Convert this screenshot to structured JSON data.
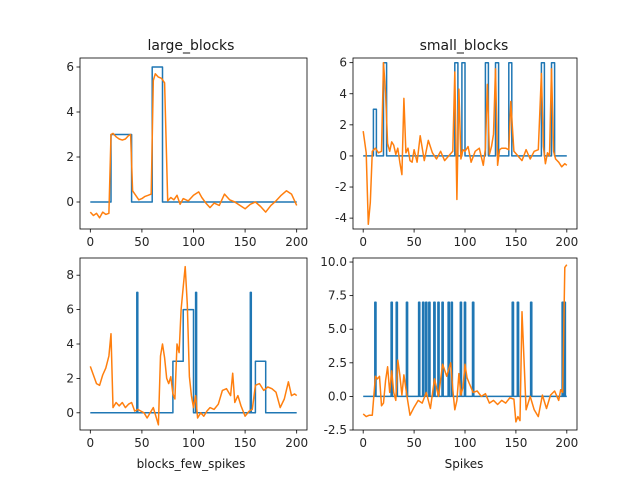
{
  "colors": {
    "blue": "#1f77b4",
    "orange": "#ff7f0e"
  },
  "chart_data": [
    {
      "type": "line",
      "title": "large_blocks",
      "xlabel": "",
      "xlim": [
        -10,
        210
      ],
      "ylim": [
        -1.2,
        6.4
      ],
      "xticks": [
        0,
        50,
        100,
        150,
        200
      ],
      "yticks": [
        0,
        2,
        4,
        6
      ],
      "series": [
        {
          "color": "#1f77b4",
          "step": true,
          "x": [
            0,
            20,
            40,
            60,
            70,
            200
          ],
          "y": [
            0,
            3,
            0,
            6,
            0,
            0
          ]
        },
        {
          "color": "#ff7f0e",
          "x": [
            0,
            3,
            6,
            9,
            12,
            15,
            18,
            20,
            22,
            25,
            28,
            31,
            34,
            37,
            39,
            41,
            44,
            47,
            50,
            53,
            56,
            59,
            61,
            63,
            66,
            69,
            72,
            75,
            78,
            81,
            84,
            87,
            90,
            95,
            100,
            105,
            108,
            112,
            116,
            120,
            125,
            130,
            135,
            140,
            145,
            150,
            155,
            160,
            165,
            170,
            175,
            180,
            185,
            190,
            195,
            200
          ],
          "y": [
            -0.45,
            -0.6,
            -0.5,
            -0.7,
            -0.45,
            -0.55,
            -0.5,
            3.0,
            3.05,
            2.9,
            2.8,
            2.75,
            2.8,
            2.95,
            3.0,
            0.5,
            0.3,
            0.1,
            0.15,
            0.25,
            0.3,
            0.35,
            5.4,
            5.7,
            5.55,
            5.5,
            5.3,
            0.05,
            0.2,
            0.1,
            0.3,
            -0.1,
            0.15,
            0.05,
            0.3,
            0.45,
            0.2,
            -0.05,
            -0.25,
            -0.05,
            -0.15,
            0.35,
            0.1,
            0.0,
            -0.15,
            -0.3,
            -0.1,
            0.0,
            -0.2,
            -0.45,
            -0.15,
            0.05,
            0.3,
            0.5,
            0.35,
            -0.15
          ]
        }
      ]
    },
    {
      "type": "line",
      "title": "small_blocks",
      "xlabel": "",
      "xlim": [
        -10,
        210
      ],
      "ylim": [
        -4.7,
        6.3
      ],
      "xticks": [
        0,
        50,
        100,
        150,
        200
      ],
      "yticks": [
        -4,
        -2,
        0,
        2,
        4,
        6
      ],
      "series": [
        {
          "color": "#1f77b4",
          "step": true,
          "x": [
            0,
            10,
            13,
            20,
            23,
            90,
            93,
            97,
            100,
            120,
            123,
            130,
            133,
            143,
            146,
            175,
            178,
            185,
            188,
            200
          ],
          "y": [
            0,
            3,
            0,
            6,
            0,
            6,
            0,
            6,
            0,
            6,
            0,
            6,
            0,
            6,
            0,
            6,
            0,
            6,
            0,
            0
          ]
        },
        {
          "color": "#ff7f0e",
          "x": [
            0,
            3,
            5,
            7,
            9,
            12,
            15,
            18,
            20,
            22,
            24,
            26,
            28,
            30,
            32,
            34,
            36,
            38,
            40,
            42,
            44,
            46,
            48,
            50,
            53,
            56,
            60,
            64,
            68,
            72,
            76,
            80,
            84,
            88,
            90,
            92,
            94,
            96,
            98,
            100,
            103,
            106,
            110,
            114,
            118,
            120,
            122,
            124,
            126,
            128,
            130,
            132,
            134,
            136,
            140,
            143,
            145,
            148,
            152,
            156,
            160,
            164,
            168,
            172,
            175,
            177,
            179,
            181,
            183,
            185,
            187,
            189,
            192,
            195,
            198,
            200
          ],
          "y": [
            1.6,
            0.2,
            -4.4,
            -3.0,
            0.3,
            0.5,
            0.2,
            0.3,
            6.0,
            4.0,
            0.8,
            0.3,
            0.9,
            0.7,
            0.1,
            0.5,
            -0.4,
            -1.2,
            3.7,
            0.2,
            0.5,
            -0.3,
            -0.4,
            0.4,
            -0.4,
            1.3,
            -0.3,
            1.0,
            0.2,
            -0.2,
            0.3,
            -0.3,
            0.0,
            0.3,
            5.4,
            -2.8,
            4.3,
            -0.2,
            0.4,
            0.3,
            0.6,
            -0.4,
            0.3,
            0.5,
            -0.6,
            0.5,
            4.6,
            0.1,
            0.6,
            1.4,
            5.6,
            -0.6,
            0.4,
            0.5,
            0.5,
            0.4,
            3.5,
            0.3,
            0.0,
            -0.3,
            0.4,
            -0.2,
            0.3,
            0.4,
            5.3,
            0.6,
            -0.5,
            0.2,
            0.0,
            5.6,
            0.3,
            -0.2,
            -0.4,
            -0.7,
            -0.5,
            -0.6
          ]
        }
      ]
    },
    {
      "type": "line",
      "title": "",
      "xlabel": "blocks_few_spikes",
      "xlim": [
        -10,
        210
      ],
      "ylim": [
        -1.0,
        9.0
      ],
      "xticks": [
        0,
        50,
        100,
        150,
        200
      ],
      "yticks": [
        0,
        2,
        4,
        6,
        8
      ],
      "series": [
        {
          "color": "#1f77b4",
          "step": true,
          "x": [
            0,
            45,
            46,
            80,
            90,
            100,
            102,
            103,
            104,
            155,
            156,
            160,
            170,
            200
          ],
          "y": [
            0,
            7,
            0,
            3,
            6,
            0,
            7,
            0,
            0,
            7,
            0,
            3,
            0,
            0
          ]
        },
        {
          "color": "#ff7f0e",
          "x": [
            0,
            3,
            6,
            9,
            12,
            15,
            18,
            20,
            22,
            25,
            28,
            31,
            34,
            37,
            40,
            43,
            46,
            49,
            52,
            55,
            58,
            61,
            64,
            66,
            68,
            70,
            72,
            74,
            76,
            78,
            80,
            82,
            84,
            86,
            88,
            90,
            92,
            94,
            96,
            98,
            100,
            102,
            104,
            107,
            110,
            113,
            116,
            120,
            124,
            128,
            132,
            136,
            138,
            140,
            143,
            146,
            150,
            154,
            157,
            160,
            164,
            168,
            172,
            176,
            180,
            184,
            188,
            192,
            195,
            198,
            200
          ],
          "y": [
            2.7,
            2.2,
            1.7,
            1.6,
            2.2,
            2.6,
            3.3,
            4.6,
            0.3,
            0.6,
            0.4,
            0.6,
            0.3,
            0.5,
            0.6,
            0.1,
            0.2,
            0.1,
            0.0,
            -0.3,
            0.0,
            0.3,
            -0.3,
            -0.7,
            3.3,
            4.0,
            3.2,
            2.0,
            1.7,
            2.1,
            1.1,
            0.8,
            4.0,
            3.5,
            6.0,
            7.3,
            8.5,
            6.3,
            2.1,
            1.0,
            0.3,
            1.0,
            -0.3,
            0.0,
            -0.2,
            0.1,
            0.3,
            0.2,
            0.5,
            1.3,
            1.4,
            1.0,
            2.3,
            0.6,
            1.0,
            0.4,
            -0.2,
            0.1,
            0.2,
            1.6,
            1.7,
            1.3,
            1.5,
            1.4,
            1.2,
            0.3,
            0.8,
            1.8,
            1.0,
            1.1,
            1.0
          ]
        }
      ]
    },
    {
      "type": "line",
      "title": "",
      "xlabel": "Spikes",
      "xlim": [
        -10,
        210
      ],
      "ylim": [
        -2.5,
        10.3
      ],
      "xticks": [
        0,
        50,
        100,
        150,
        200
      ],
      "yticks": [
        -2.5,
        0.0,
        2.5,
        5.0,
        7.5,
        10.0
      ],
      "series": [
        {
          "color": "#1f77b4",
          "spikes": true,
          "spike_height": 7,
          "x": [
            12,
            28,
            33,
            43,
            55,
            59,
            62,
            65,
            70,
            74,
            78,
            84,
            87,
            96,
            100,
            108,
            147,
            152,
            165,
            196,
            197,
            198
          ],
          "xmax": 200
        },
        {
          "color": "#ff7f0e",
          "x": [
            0,
            3,
            6,
            9,
            12,
            14,
            16,
            18,
            20,
            22,
            24,
            26,
            28,
            30,
            32,
            34,
            36,
            38,
            40,
            43,
            46,
            50,
            54,
            58,
            62,
            66,
            70,
            74,
            78,
            82,
            86,
            88,
            90,
            92,
            94,
            96,
            98,
            100,
            102,
            104,
            108,
            112,
            116,
            120,
            124,
            128,
            132,
            136,
            140,
            144,
            148,
            150,
            152,
            154,
            156,
            160,
            164,
            168,
            172,
            176,
            180,
            184,
            188,
            192,
            194,
            196,
            198,
            200
          ],
          "y": [
            -1.3,
            -1.5,
            -1.4,
            -1.4,
            1.5,
            1.3,
            1.5,
            -0.7,
            -0.5,
            1.2,
            2.2,
            0.3,
            1.9,
            0.3,
            -0.3,
            2.7,
            1.6,
            0.1,
            1.6,
            0.0,
            -1.4,
            -0.8,
            -0.3,
            -0.5,
            0.3,
            -0.9,
            1.3,
            0.0,
            2.4,
            1.5,
            2.5,
            0.5,
            -1.0,
            -0.3,
            1.7,
            0.1,
            0.7,
            2.4,
            1.4,
            1.0,
            0.3,
            0.4,
            0.0,
            0.2,
            -0.5,
            -0.3,
            -0.6,
            -0.3,
            -0.5,
            -0.1,
            -0.2,
            -1.9,
            -1.5,
            -1.8,
            6.3,
            -1.0,
            0.0,
            -1.0,
            -1.5,
            0.1,
            -0.9,
            0.1,
            0.4,
            -0.3,
            0.5,
            0.3,
            9.6,
            9.8
          ]
        }
      ]
    }
  ]
}
